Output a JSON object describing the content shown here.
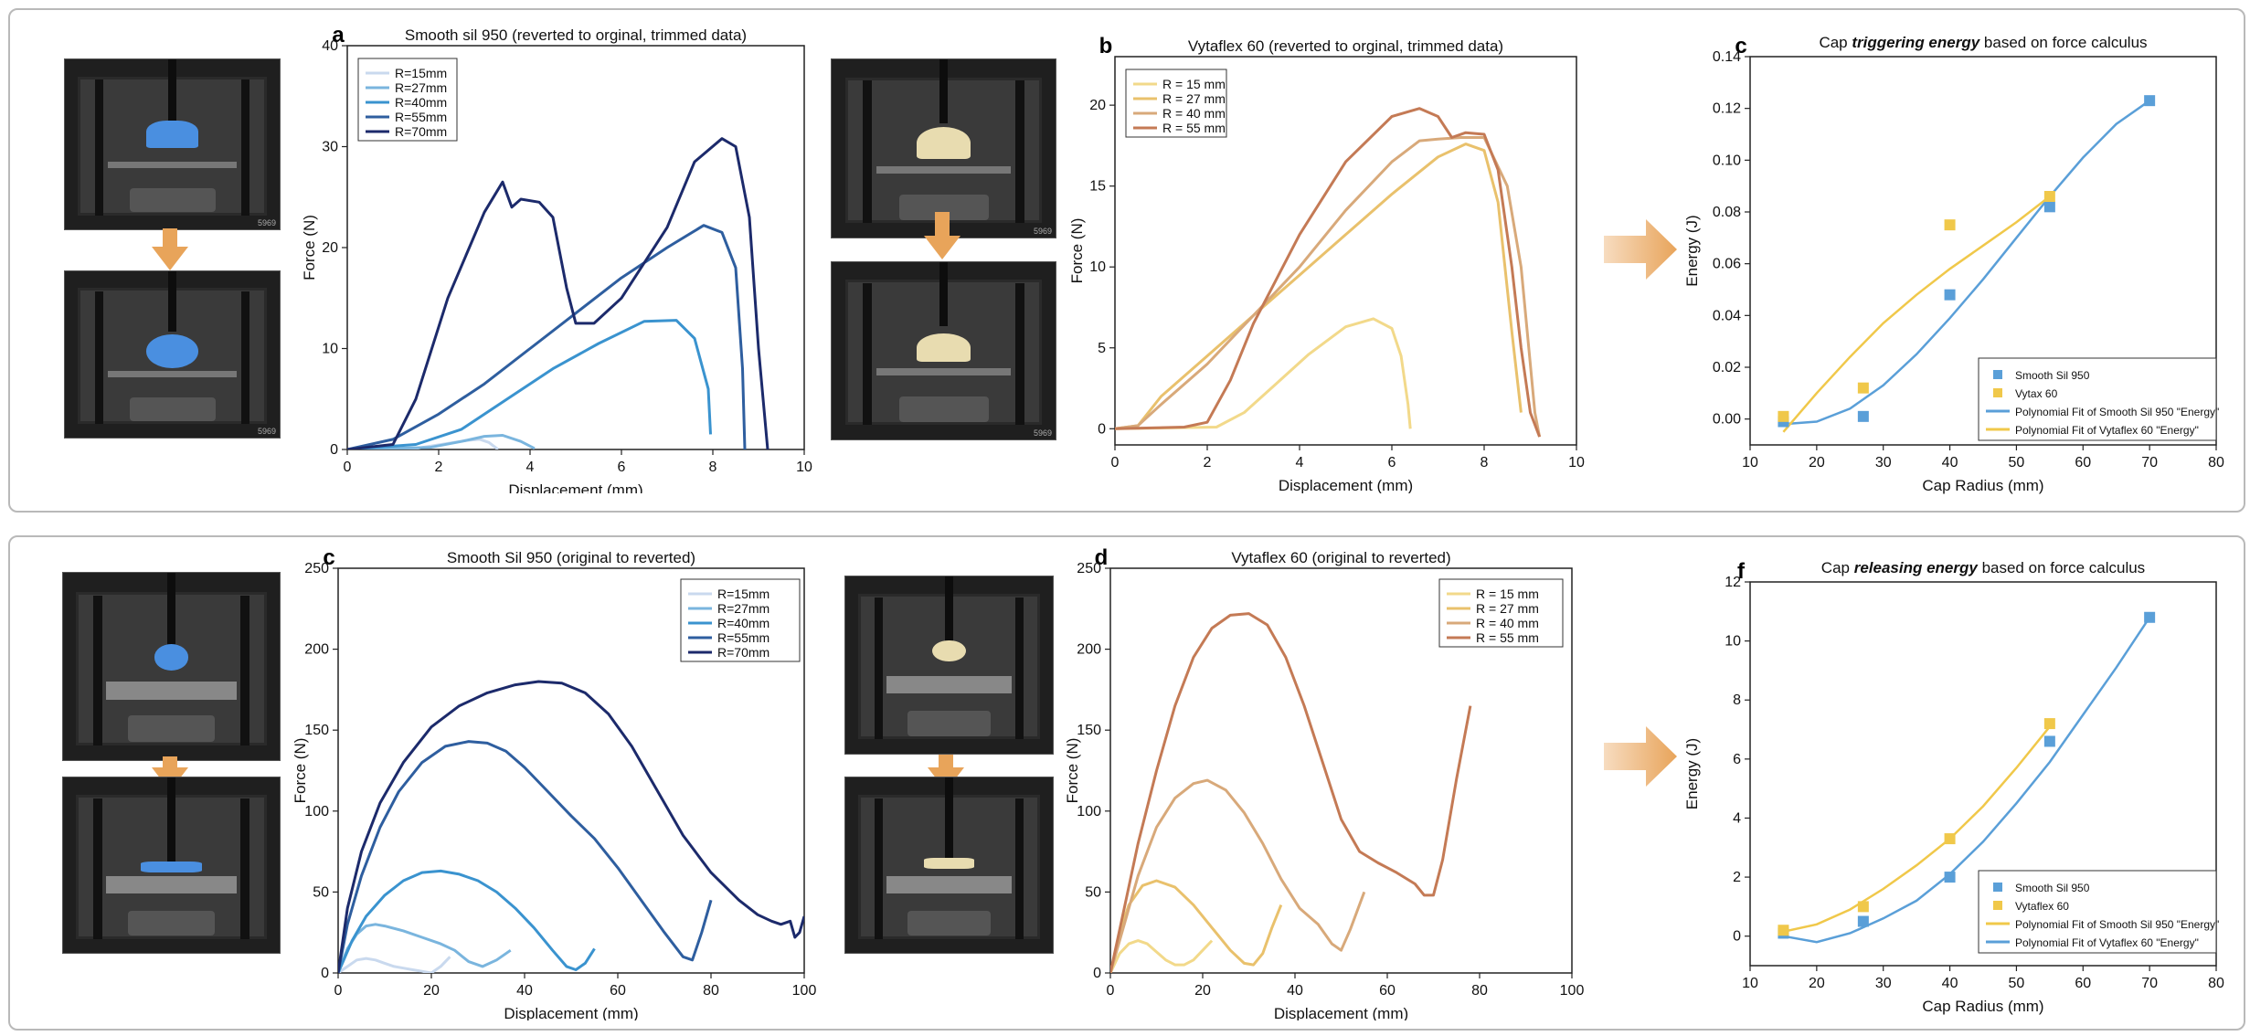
{
  "colors": {
    "blue_series": [
      "#c9d9ee",
      "#7ab5de",
      "#3a93cf",
      "#2e5e9f",
      "#1c2a6b"
    ],
    "tan_series": [
      "#f2d98a",
      "#e9c16c",
      "#d8a97a",
      "#c47a55"
    ],
    "fit_blue": "#5a9fd8",
    "fit_yellow": "#f0c84a",
    "arrow_orange": "#e8a45a",
    "sample_blue": "#4a8fe0",
    "sample_tan": "#e8dcb0"
  },
  "photos": {
    "label": "5969"
  },
  "chart_data": [
    {
      "id": "a",
      "type": "line",
      "letter": "a",
      "title": "Smooth sil 950 (reverted to orginal, trimmed data)",
      "xlabel": "Displacement (mm)",
      "ylabel": "Force (N)",
      "xlim": [
        0,
        10
      ],
      "ylim": [
        0,
        40
      ],
      "xticks": [
        0,
        2,
        4,
        6,
        8,
        10
      ],
      "yticks": [
        0,
        10,
        20,
        30,
        40
      ],
      "legend": "top-left",
      "series": [
        {
          "name": "R=15mm",
          "x": [
            0,
            1.5,
            2.2,
            2.6,
            2.9,
            3.1,
            3.3
          ],
          "y": [
            0,
            0.1,
            0.6,
            0.9,
            1.0,
            0.7,
            0.0
          ]
        },
        {
          "name": "R=27mm",
          "x": [
            0,
            1.8,
            2.5,
            3.0,
            3.4,
            3.8,
            4.1
          ],
          "y": [
            0,
            0.2,
            0.8,
            1.3,
            1.4,
            0.8,
            0.1
          ]
        },
        {
          "name": "R=40mm",
          "x": [
            0,
            1.5,
            2.5,
            3.5,
            4.5,
            5.5,
            6.5,
            7.2,
            7.6,
            7.9,
            7.95
          ],
          "y": [
            0,
            0.5,
            2.0,
            5.0,
            8.0,
            10.5,
            12.7,
            12.8,
            11.0,
            6.0,
            1.5
          ]
        },
        {
          "name": "R=55mm",
          "x": [
            0,
            1.0,
            2.0,
            3.0,
            4.0,
            5.0,
            6.0,
            7.0,
            7.8,
            8.2,
            8.5,
            8.65,
            8.7
          ],
          "y": [
            0,
            1.0,
            3.5,
            6.5,
            10.0,
            13.5,
            17.0,
            20.0,
            22.2,
            21.5,
            18.0,
            8.0,
            0.0
          ]
        },
        {
          "name": "R=70mm",
          "x": [
            0,
            1.0,
            1.5,
            2.2,
            3.0,
            3.4,
            3.6,
            3.8,
            4.2,
            4.5,
            4.8,
            5.0,
            5.4,
            6.0,
            7.0,
            7.6,
            8.2,
            8.5,
            8.8,
            9.0,
            9.2
          ],
          "y": [
            0,
            0.5,
            5.0,
            15.0,
            23.5,
            26.5,
            24.0,
            24.8,
            24.5,
            23.0,
            16.0,
            12.5,
            12.5,
            15.0,
            22.0,
            28.5,
            30.8,
            30.0,
            23.0,
            10.0,
            0.0
          ]
        }
      ]
    },
    {
      "id": "b",
      "type": "line",
      "letter": "b",
      "title": "Vytaflex 60 (reverted to orginal, trimmed data)",
      "xlabel": "Displacement (mm)",
      "ylabel": "Force (N)",
      "xlim": [
        0,
        10
      ],
      "ylim": [
        -1,
        23
      ],
      "xticks": [
        0,
        2,
        4,
        6,
        8,
        10
      ],
      "yticks": [
        0,
        5,
        10,
        15,
        20
      ],
      "legend": "top-left",
      "series": [
        {
          "name": "R = 15 mm",
          "x": [
            0,
            2.2,
            2.8,
            3.5,
            4.2,
            5.0,
            5.6,
            6.0,
            6.2,
            6.35,
            6.4
          ],
          "y": [
            0,
            0.1,
            1.0,
            2.8,
            4.6,
            6.3,
            6.8,
            6.2,
            4.5,
            1.5,
            0.0
          ]
        },
        {
          "name": "R = 27 mm",
          "x": [
            0,
            0.5,
            1.0,
            2.0,
            3.0,
            4.0,
            5.0,
            6.0,
            7.0,
            7.6,
            8.0,
            8.3,
            8.6,
            8.8
          ],
          "y": [
            0,
            0.2,
            2.0,
            4.5,
            7.0,
            9.5,
            12.0,
            14.5,
            16.8,
            17.6,
            17.2,
            14.0,
            6.0,
            1.0
          ]
        },
        {
          "name": "R = 40 mm",
          "x": [
            0,
            0.5,
            1.0,
            2.0,
            3.0,
            4.0,
            5.0,
            6.0,
            6.6,
            7.0,
            7.5,
            8.0,
            8.5,
            8.8,
            9.0,
            9.1,
            9.2
          ],
          "y": [
            0,
            0.2,
            1.5,
            4.0,
            7.0,
            10.0,
            13.5,
            16.5,
            17.8,
            17.9,
            18.0,
            18.0,
            15.0,
            10.0,
            4.0,
            1.0,
            -0.5
          ]
        },
        {
          "name": "R = 55 mm",
          "x": [
            0,
            1.5,
            2.0,
            2.5,
            3.0,
            4.0,
            5.0,
            6.0,
            6.6,
            7.0,
            7.3,
            7.6,
            8.0,
            8.3,
            8.6,
            8.8,
            9.0,
            9.2
          ],
          "y": [
            0,
            0.1,
            0.4,
            3.0,
            6.5,
            12.0,
            16.5,
            19.3,
            19.8,
            19.3,
            18.0,
            18.3,
            18.2,
            16.0,
            10.0,
            5.0,
            1.0,
            -0.5
          ]
        }
      ]
    },
    {
      "id": "c-top",
      "type": "scatter",
      "letter": "c",
      "title_prefix": "Cap ",
      "title_emph": "triggering energy",
      "title_suffix": " based on force calculus",
      "xlabel": "Cap Radius (mm)",
      "ylabel": "Energy (J)",
      "xlim": [
        10,
        80
      ],
      "ylim": [
        -0.01,
        0.14
      ],
      "xticks": [
        10,
        20,
        30,
        40,
        50,
        60,
        70,
        80
      ],
      "yticks": [
        0.0,
        0.02,
        0.04,
        0.06,
        0.08,
        0.1,
        0.12,
        0.14
      ],
      "ytick_labels": [
        "0.00",
        "0.02",
        "0.04",
        "0.06",
        "0.08",
        "0.10",
        "0.12",
        "0.14"
      ],
      "legend": "bottom-right",
      "series": [
        {
          "name": "Smooth Sil 950",
          "x": [
            15,
            27,
            40,
            55,
            70
          ],
          "y": [
            -0.001,
            0.001,
            0.048,
            0.082,
            0.123
          ]
        },
        {
          "name": "Vytax 60",
          "x": [
            15,
            27,
            40,
            55
          ],
          "y": [
            0.001,
            0.012,
            0.075,
            0.086
          ]
        }
      ],
      "fits": [
        {
          "name": "Polynomial Fit of Smooth Sil 950 \"Energy\"",
          "x": [
            15,
            20,
            25,
            30,
            35,
            40,
            45,
            50,
            55,
            60,
            65,
            70
          ],
          "y": [
            -0.002,
            -0.001,
            0.004,
            0.013,
            0.025,
            0.039,
            0.054,
            0.07,
            0.086,
            0.101,
            0.114,
            0.123
          ]
        },
        {
          "name": "Polynomial Fit of Vytaflex 60 \"Energy\"",
          "x": [
            15,
            20,
            25,
            30,
            35,
            40,
            45,
            50,
            55
          ],
          "y": [
            -0.005,
            0.01,
            0.024,
            0.037,
            0.048,
            0.058,
            0.067,
            0.076,
            0.086
          ]
        }
      ]
    },
    {
      "id": "c-bot",
      "type": "line",
      "letter": "c",
      "title": "Smooth Sil 950 (original to reverted)",
      "xlabel": "Displacement (mm)",
      "ylabel": "Force (N)",
      "xlim": [
        0,
        100
      ],
      "ylim": [
        0,
        250
      ],
      "xticks": [
        0,
        20,
        40,
        60,
        80,
        100
      ],
      "yticks": [
        0,
        50,
        100,
        150,
        200,
        250
      ],
      "legend": "top-right",
      "series": [
        {
          "name": "R=15mm",
          "x": [
            0,
            2,
            4,
            6,
            8,
            10,
            12,
            14,
            16,
            18,
            20,
            22,
            24
          ],
          "y": [
            0,
            4,
            8,
            9,
            8,
            6,
            4,
            3,
            2,
            1,
            0,
            4,
            10
          ]
        },
        {
          "name": "R=27mm",
          "x": [
            0,
            2,
            4,
            6,
            8,
            10,
            14,
            18,
            22,
            25,
            28,
            31,
            34,
            37
          ],
          "y": [
            0,
            15,
            24,
            29,
            30,
            29,
            26,
            22,
            18,
            14,
            7,
            4,
            8,
            14
          ]
        },
        {
          "name": "R=40mm",
          "x": [
            0,
            3,
            6,
            10,
            14,
            18,
            22,
            26,
            30,
            34,
            38,
            42,
            46,
            49,
            51,
            53,
            55
          ],
          "y": [
            0,
            20,
            35,
            48,
            57,
            62,
            63,
            61,
            57,
            50,
            40,
            28,
            14,
            4,
            2,
            6,
            15
          ]
        },
        {
          "name": "R=55mm",
          "x": [
            0,
            2,
            5,
            9,
            13,
            18,
            23,
            28,
            32,
            36,
            40,
            45,
            50,
            55,
            60,
            65,
            70,
            74,
            76,
            78,
            80
          ],
          "y": [
            0,
            30,
            60,
            90,
            112,
            130,
            140,
            143,
            142,
            137,
            127,
            112,
            97,
            83,
            65,
            45,
            25,
            10,
            8,
            25,
            45
          ]
        },
        {
          "name": "R=70mm",
          "x": [
            0,
            2,
            5,
            9,
            14,
            20,
            26,
            32,
            38,
            43,
            48,
            53,
            58,
            63,
            68,
            74,
            80,
            86,
            90,
            93,
            95,
            97,
            98,
            99,
            100
          ],
          "y": [
            0,
            40,
            75,
            105,
            130,
            152,
            165,
            173,
            178,
            180,
            179,
            173,
            160,
            140,
            115,
            85,
            62,
            45,
            36,
            32,
            30,
            32,
            22,
            25,
            35
          ]
        }
      ]
    },
    {
      "id": "d",
      "type": "line",
      "letter": "d",
      "title": "Vytaflex 60 (original to reverted)",
      "xlabel": "Displacement (mm)",
      "ylabel": "Force (N)",
      "xlim": [
        0,
        100
      ],
      "ylim": [
        0,
        250
      ],
      "xticks": [
        0,
        20,
        40,
        60,
        80,
        100
      ],
      "yticks": [
        0,
        50,
        100,
        150,
        200,
        250
      ],
      "legend": "top-right",
      "series": [
        {
          "name": "R = 15 mm",
          "x": [
            0,
            2,
            4,
            6,
            8,
            10,
            12,
            14,
            16,
            18,
            20,
            22
          ],
          "y": [
            0,
            12,
            18,
            20,
            18,
            13,
            8,
            5,
            5,
            8,
            14,
            20
          ]
        },
        {
          "name": "R = 27 mm",
          "x": [
            0,
            2,
            4,
            7,
            10,
            14,
            18,
            22,
            26,
            29,
            31,
            33,
            35,
            37
          ],
          "y": [
            0,
            25,
            42,
            54,
            57,
            53,
            42,
            28,
            14,
            6,
            5,
            12,
            28,
            42
          ]
        },
        {
          "name": "R = 40 mm",
          "x": [
            0,
            3,
            6,
            10,
            14,
            18,
            21,
            25,
            29,
            33,
            37,
            41,
            45,
            48,
            50,
            52,
            55
          ],
          "y": [
            0,
            30,
            60,
            90,
            108,
            117,
            119,
            113,
            99,
            80,
            58,
            40,
            30,
            18,
            14,
            27,
            50
          ]
        },
        {
          "name": "R = 55 mm",
          "x": [
            0,
            3,
            6,
            10,
            14,
            18,
            22,
            26,
            30,
            34,
            38,
            42,
            46,
            50,
            54,
            58,
            62,
            66,
            68,
            70,
            72,
            75,
            78
          ],
          "y": [
            0,
            40,
            80,
            125,
            165,
            195,
            213,
            221,
            222,
            215,
            195,
            165,
            130,
            95,
            75,
            68,
            62,
            55,
            48,
            48,
            70,
            120,
            165
          ]
        }
      ]
    },
    {
      "id": "f",
      "type": "scatter",
      "letter": "f",
      "title_prefix": "Cap ",
      "title_emph": "releasing energy",
      "title_suffix": " based on force calculus",
      "xlabel": "Cap Radius (mm)",
      "ylabel": "Energy (J)",
      "xlim": [
        10,
        80
      ],
      "ylim": [
        -1,
        12
      ],
      "xticks": [
        10,
        20,
        30,
        40,
        50,
        60,
        70,
        80
      ],
      "yticks": [
        0,
        2,
        4,
        6,
        8,
        10,
        12
      ],
      "ytick_labels": [
        "0",
        "2",
        "4",
        "6",
        "8",
        "10",
        "12"
      ],
      "legend": "bottom-right",
      "series": [
        {
          "name": "Smooth Sil 950",
          "x": [
            15,
            27,
            40,
            55,
            70
          ],
          "y": [
            0.1,
            0.5,
            2.0,
            6.6,
            10.8
          ]
        },
        {
          "name": "Vytaflex 60",
          "x": [
            15,
            27,
            40,
            55
          ],
          "y": [
            0.2,
            1.0,
            3.3,
            7.2
          ]
        }
      ],
      "fits": [
        {
          "name": "Polynomial Fit of Smooth Sil 950 \"Energy\"",
          "x": [
            15,
            20,
            25,
            30,
            35,
            40,
            45,
            50,
            55
          ],
          "y": [
            0.15,
            0.4,
            0.9,
            1.6,
            2.4,
            3.3,
            4.4,
            5.7,
            7.1
          ]
        },
        {
          "name": "Polynomial Fit of Vytaflex 60 \"Energy\"",
          "x": [
            15,
            20,
            25,
            30,
            35,
            40,
            45,
            50,
            55,
            60,
            65,
            70
          ],
          "y": [
            0.0,
            -0.2,
            0.1,
            0.6,
            1.2,
            2.1,
            3.2,
            4.5,
            5.9,
            7.5,
            9.1,
            10.8
          ]
        }
      ]
    }
  ]
}
